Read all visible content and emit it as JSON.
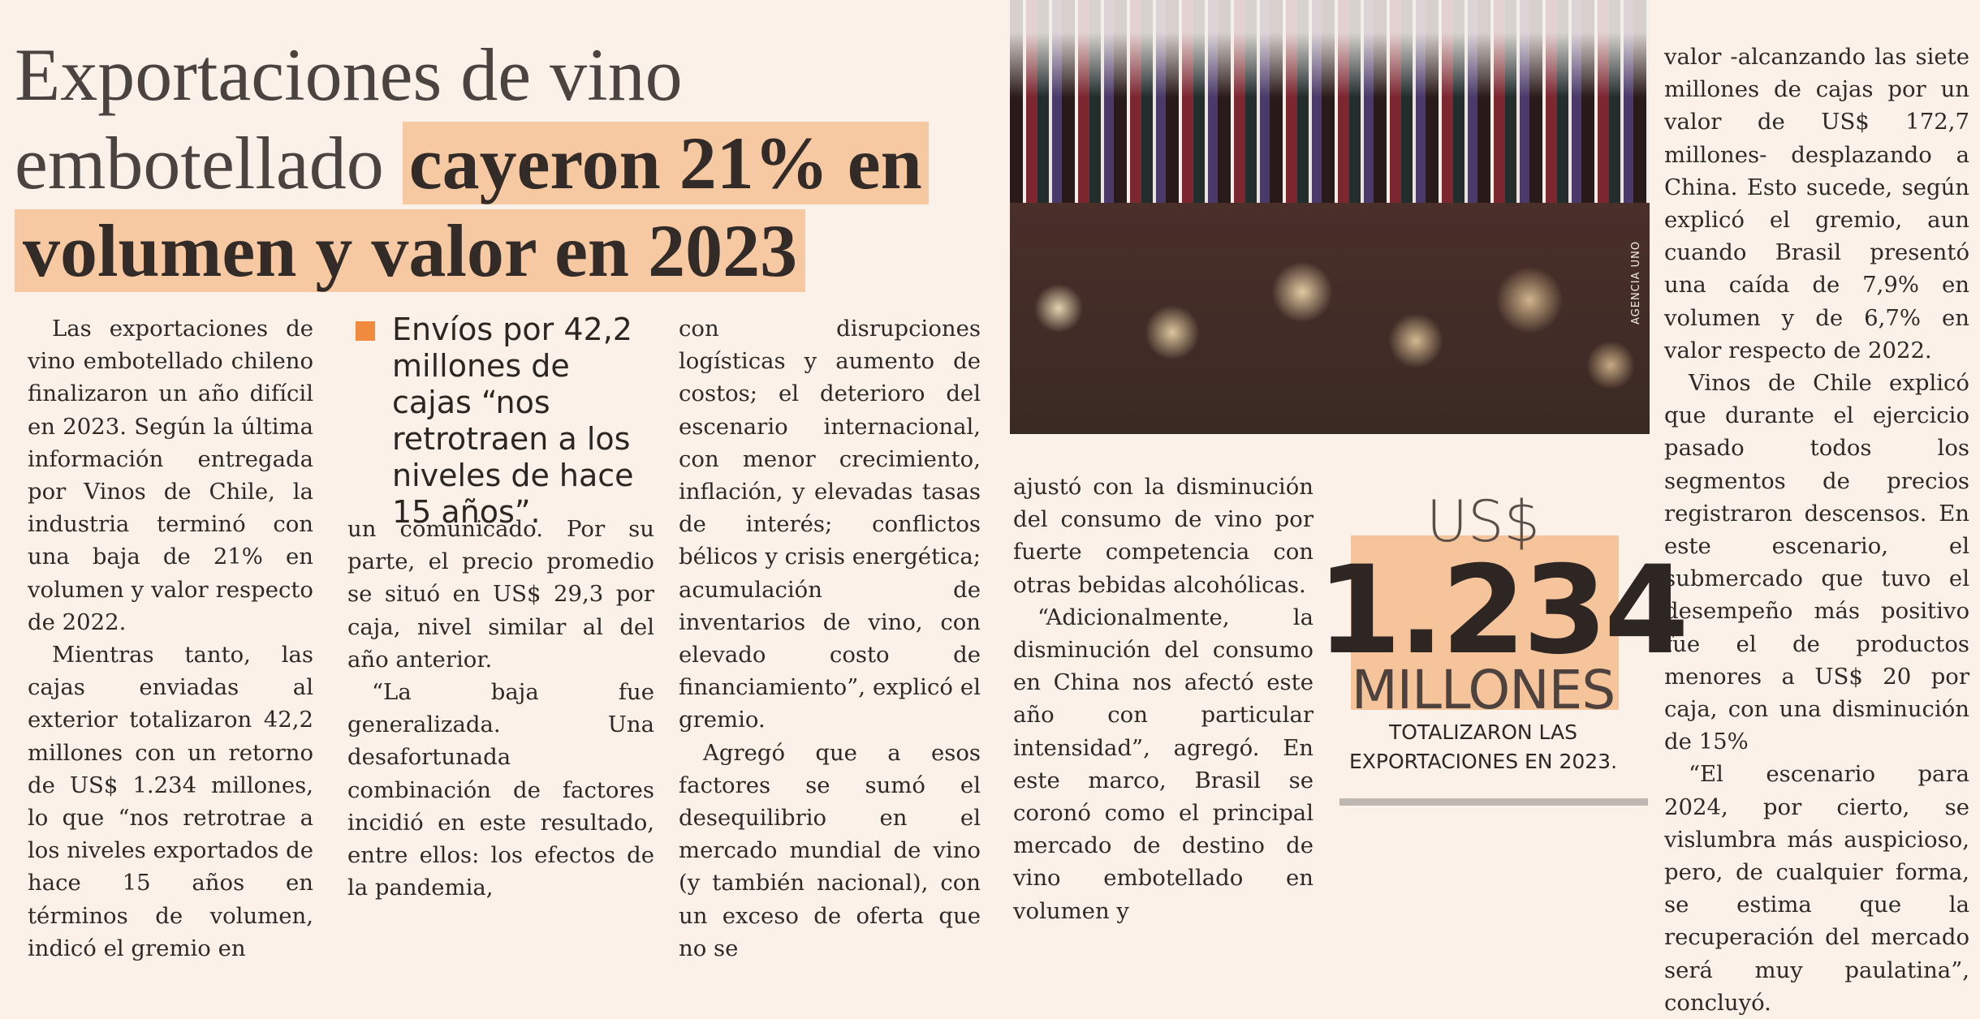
{
  "headline": {
    "line1": "Exportaciones de vino",
    "line2_plain": "embotellado",
    "line2_highlight": "cayeron 21% en",
    "line3_highlight": "volumen y valor en 2023"
  },
  "pull_quote": "Envíos por 42,2 millones de cajas “nos retrotraen a los niveles de hace 15 años”.",
  "photo_credit": "AGENCIA UNO",
  "stat": {
    "currency": "US$",
    "number": "1.234",
    "unit": "MILLONES",
    "caption": "TOTALIZARON LAS EXPORTACIONES EN 2023."
  },
  "col1": {
    "p1": "Las exportaciones de vino embotellado chileno finalizaron un año difícil en 2023. Según la última información entregada por Vinos de Chile, la industria terminó con una baja de 21% en volumen y valor respecto de 2022.",
    "p2": "Mientras tanto, las cajas enviadas al exterior totalizaron 42,2 millones con un retorno de US$ 1.234 millones, lo que “nos retrotrae a los niveles exportados de hace 15 años en términos de volumen, indicó el gremio en"
  },
  "col2": {
    "p1": "un comunicado. Por su parte, el precio promedio se situó en US$ 29,3 por caja, nivel similar al del año anterior.",
    "p2": "“La baja fue generalizada. Una desafortunada combinación de factores incidió en este resultado, entre ellos: los efectos de la pandemia,"
  },
  "col3": {
    "p1": "con disrupciones logísticas y aumento de costos; el deterioro del escenario internacional, con menor crecimiento, inflación, y elevadas tasas de interés; conflictos bélicos y crisis energética; acumulación de inventarios de vino, con elevado costo de financiamiento”, explicó el gremio.",
    "p2": "Agregó que a esos factores se sumó el desequilibrio en el mercado mundial de vino (y también nacional), con un exceso de oferta que no se"
  },
  "col4": {
    "p1": "ajustó con la disminución del consumo de vino por fuerte competencia con otras bebidas alcohólicas.",
    "p2": "“Adicionalmente, la disminución del consumo en China nos afectó este año con particular intensidad”, agregó. En este marco, Brasil se coronó como el principal mercado de destino de vino embotellado en volumen y"
  },
  "col5": {
    "p1": "valor -alcanzando las siete millones de cajas por un valor de US$ 172,7 millones- desplazando a China. Esto sucede, según explicó el gremio, aun cuando Brasil presentó una caída de 7,9% en volumen y de 6,7% en valor respecto de 2022.",
    "p2": "Vinos de Chile explicó que durante el ejercicio pasado todos los segmentos de precios registraron descensos. En este escenario, el submercado que tuvo el desempeño más positivo fue el de productos menores a US$ 20 por caja, con una disminución de 15%",
    "p3": "“El escenario para 2024, por cierto, se vislumbra más auspicioso, pero, de cualquier forma, se estima que la recuperación del mercado será muy paulatina”, concluyó."
  }
}
